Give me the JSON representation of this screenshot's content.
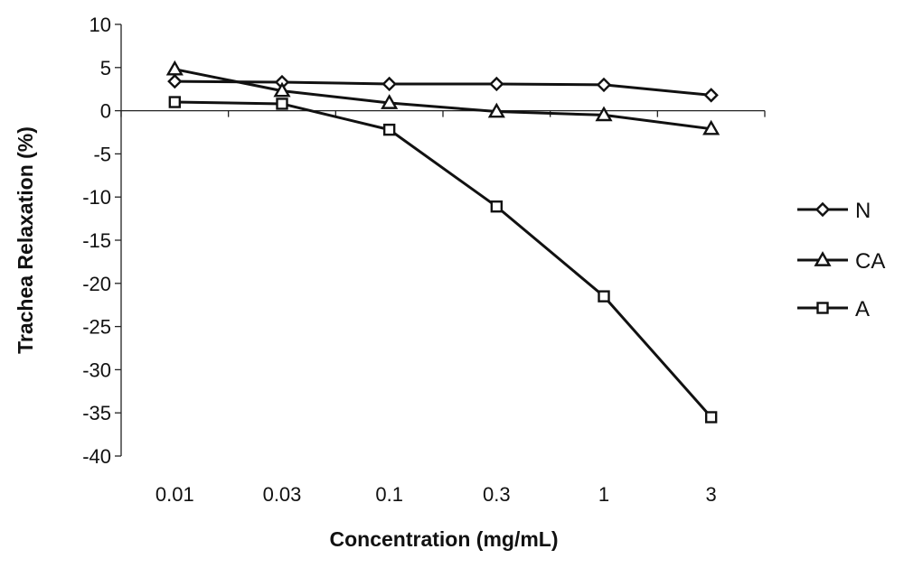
{
  "chart_data": {
    "type": "line",
    "xlabel": "Concentration (mg/mL)",
    "ylabel": "Trachea Relaxation (%)",
    "categories": [
      "0.01",
      "0.03",
      "0.1",
      "0.3",
      "1",
      "3"
    ],
    "ylim": [
      -40,
      10
    ],
    "yticks": [
      10,
      5,
      0,
      -5,
      -10,
      -15,
      -20,
      -25,
      -30,
      -35,
      -40
    ],
    "grid": false,
    "legend_position": "right",
    "series": [
      {
        "name": "N",
        "marker": "diamond",
        "values": [
          3.4,
          3.3,
          3.1,
          3.1,
          3.0,
          1.8
        ]
      },
      {
        "name": "CA",
        "marker": "triangle",
        "values": [
          4.8,
          2.3,
          0.9,
          -0.1,
          -0.5,
          -2.1
        ]
      },
      {
        "name": "A",
        "marker": "square",
        "values": [
          1.0,
          0.8,
          -2.2,
          -11.1,
          -21.5,
          -35.5
        ]
      }
    ]
  }
}
